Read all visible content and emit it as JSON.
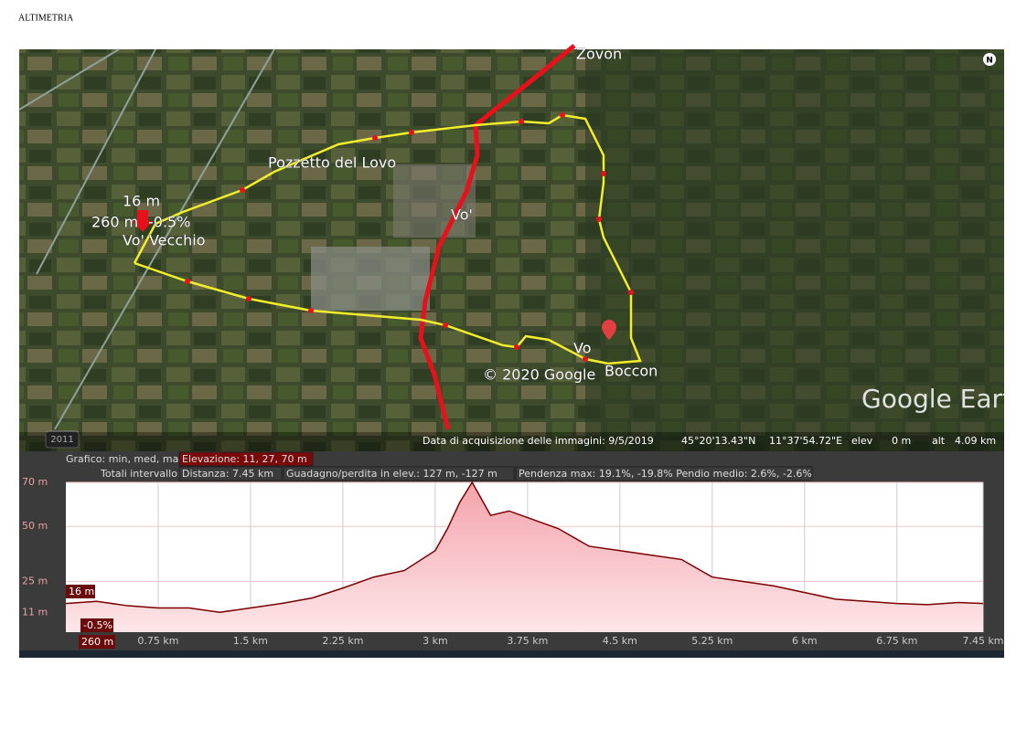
{
  "header": {
    "title": "ALTIMETRIA"
  },
  "map": {
    "labels": [
      "Zovon",
      "Pozzetto del Lovo",
      "Vo' Vecchio",
      "Vo'",
      "Vo",
      "Boccon"
    ],
    "cursor_elevation": "16 m",
    "cursor_distance": "260 m",
    "cursor_slope": "-0.5%",
    "copyright": "© 2020 Google",
    "brand": "Google Earth",
    "north": "N",
    "year": "2011"
  },
  "status_bar": {
    "acquisition": "Data di acquisizione delle immagini: 9/5/2019",
    "lat": "45°20'13.43\"N",
    "lon": "11°37'54.72\"E",
    "elev_label": "elev",
    "elev": "0 m",
    "alt_label": "alt",
    "alt": "4.09 km"
  },
  "profile_info": {
    "chart_label": "Grafico: min, med, max",
    "elevation": "Elevazione: 11, 27, 70 m",
    "totals_label": "Totali intervallo:",
    "distance": "Distanza: 7.45 km",
    "gain_loss": "Guadagno/perdita in elev.: 127 m, -127 m",
    "slope": "Pendenza max: 19.1%, -19.8% Pendio medio: 2.6%, -2.6%"
  },
  "chart_data": {
    "type": "area",
    "color": "#7a0000",
    "xlim": [
      0,
      7.45
    ],
    "ylim": [
      2,
      70
    ],
    "xticks": [
      {
        "value": 0.75,
        "label": "0.75 km"
      },
      {
        "value": 1.5,
        "label": "1.5 km"
      },
      {
        "value": 2.25,
        "label": "2.25 km"
      },
      {
        "value": 3,
        "label": "3 km"
      },
      {
        "value": 3.75,
        "label": "3.75 km"
      },
      {
        "value": 4.5,
        "label": "4.5 km"
      },
      {
        "value": 5.25,
        "label": "5.25 km"
      },
      {
        "value": 6,
        "label": "6 km"
      },
      {
        "value": 6.75,
        "label": "6.75 km"
      },
      {
        "value": 7.45,
        "label": "7.45 km"
      }
    ],
    "yticks": [
      {
        "value": 11,
        "label": "11 m"
      },
      {
        "value": 25,
        "label": "25 m"
      },
      {
        "value": 50,
        "label": "50 m"
      },
      {
        "value": 70,
        "label": "70 m"
      }
    ],
    "annotations": [
      "16 m",
      "-0.5%",
      "260 m"
    ],
    "x": [
      0,
      0.25,
      0.5,
      0.75,
      1.0,
      1.25,
      1.5,
      1.75,
      2.0,
      2.25,
      2.5,
      2.75,
      3.0,
      3.1,
      3.2,
      3.3,
      3.45,
      3.6,
      3.75,
      4.0,
      4.25,
      4.5,
      4.75,
      5.0,
      5.25,
      5.5,
      5.75,
      6.0,
      6.25,
      6.5,
      6.75,
      7.0,
      7.25,
      7.45
    ],
    "values": [
      15,
      16,
      14,
      13,
      13,
      11,
      13,
      15,
      17.5,
      22,
      27,
      30,
      39,
      49,
      61,
      70,
      55,
      57,
      54,
      49,
      41,
      39,
      37,
      35,
      27,
      25,
      23,
      20,
      17,
      16,
      15,
      14.5,
      15.5,
      15
    ]
  }
}
